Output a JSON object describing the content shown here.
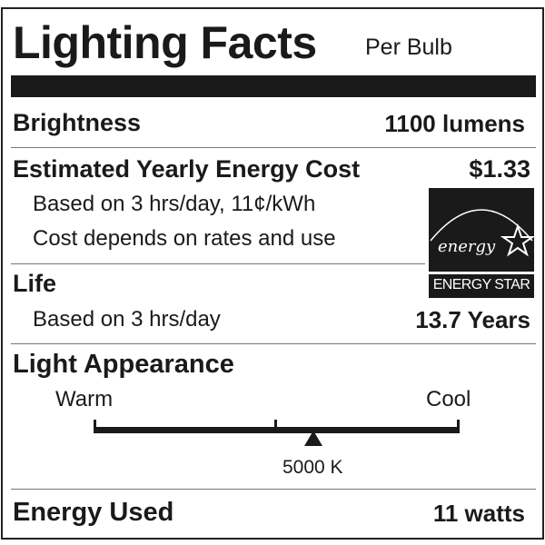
{
  "header": {
    "title": "Lighting Facts",
    "subtitle": "Per Bulb"
  },
  "brightness": {
    "label": "Brightness",
    "value": "1100 lumens"
  },
  "energy_cost": {
    "label": "Estimated Yearly Energy Cost",
    "value": "$1.33",
    "note1": "Based on 3 hrs/day, 11¢/kWh",
    "note2": "Cost depends on rates and use"
  },
  "life": {
    "label": "Life",
    "note": "Based on 3 hrs/day",
    "value": "13.7 Years"
  },
  "light_appearance": {
    "label": "Light Appearance",
    "warm_label": "Warm",
    "cool_label": "Cool",
    "marker_label": "5000 K",
    "marker_fraction": 0.6
  },
  "energy_used": {
    "label": "Energy Used",
    "value": "11 watts"
  },
  "energy_star": {
    "logo_text": "energy",
    "label": "ENERGY STAR"
  }
}
